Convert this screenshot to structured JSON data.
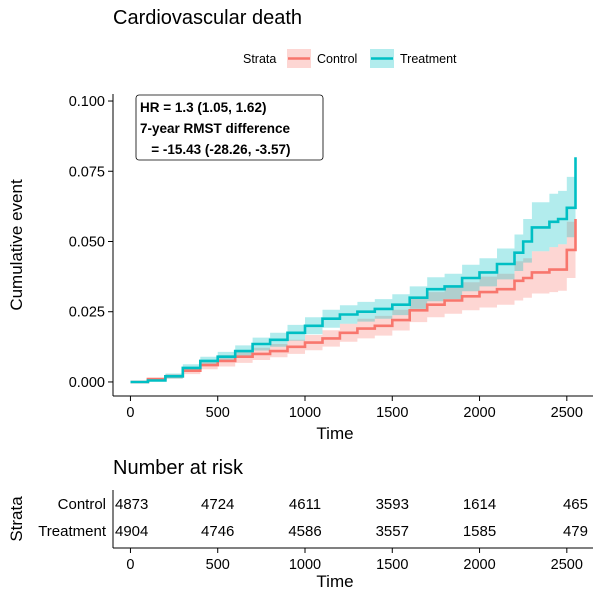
{
  "chart_data": [
    {
      "type": "line",
      "title": "Cardiovascular death",
      "xlabel": "Time",
      "ylabel": "Cumulative event",
      "xlim": [
        -100,
        2650
      ],
      "ylim": [
        -0.005,
        0.1025
      ],
      "xticks": [
        "0",
        "500",
        "1000",
        "1500",
        "2000",
        "2500"
      ],
      "xtick_values": [
        0,
        500,
        1000,
        1500,
        2000,
        2500
      ],
      "yticks": [
        "0.000",
        "0.025",
        "0.050",
        "0.075",
        "0.100"
      ],
      "ytick_values": [
        0,
        0.025,
        0.05,
        0.075,
        0.1
      ],
      "legend": {
        "title": "Strata",
        "position": "top",
        "entries": [
          "Control",
          "Treatment"
        ]
      },
      "annotation": {
        "lines": [
          "HR = 1.3 (1.05, 1.62)",
          "7-year RMST difference",
          "   = -15.43 (-28.26, -3.57)"
        ]
      },
      "series": [
        {
          "name": "Control",
          "color": "#F8766D",
          "x": [
            0,
            100,
            200,
            300,
            400,
            500,
            600,
            700,
            800,
            900,
            1000,
            1100,
            1200,
            1300,
            1400,
            1500,
            1600,
            1700,
            1800,
            1900,
            2000,
            2100,
            2200,
            2250,
            2300,
            2400,
            2450,
            2500,
            2550
          ],
          "y": [
            0,
            0.001,
            0.002,
            0.004,
            0.006,
            0.0075,
            0.009,
            0.01,
            0.011,
            0.0125,
            0.014,
            0.0155,
            0.0175,
            0.019,
            0.02,
            0.022,
            0.0255,
            0.0275,
            0.029,
            0.0305,
            0.032,
            0.033,
            0.036,
            0.037,
            0.039,
            0.04,
            0.04,
            0.047,
            0.058
          ],
          "lower": [
            0,
            0.0005,
            0.0012,
            0.0028,
            0.0045,
            0.0055,
            0.0068,
            0.0078,
            0.0088,
            0.01,
            0.0113,
            0.0126,
            0.0143,
            0.0155,
            0.0165,
            0.0183,
            0.0213,
            0.023,
            0.0243,
            0.0255,
            0.0265,
            0.0275,
            0.029,
            0.03,
            0.0315,
            0.032,
            0.0325,
            0.037,
            0.046
          ],
          "upper": [
            0,
            0.0015,
            0.0028,
            0.0052,
            0.0075,
            0.0095,
            0.0112,
            0.0122,
            0.0135,
            0.015,
            0.0167,
            0.0184,
            0.0207,
            0.0225,
            0.0235,
            0.0257,
            0.0297,
            0.032,
            0.0337,
            0.0355,
            0.0375,
            0.0385,
            0.043,
            0.044,
            0.0465,
            0.048,
            0.049,
            0.057,
            0.07
          ]
        },
        {
          "name": "Treatment",
          "color": "#00BFC4",
          "x": [
            0,
            100,
            200,
            300,
            400,
            500,
            600,
            700,
            800,
            900,
            1000,
            1100,
            1200,
            1300,
            1400,
            1500,
            1600,
            1700,
            1800,
            1900,
            2000,
            2100,
            2200,
            2250,
            2300,
            2400,
            2450,
            2500,
            2550
          ],
          "y": [
            0,
            0.0005,
            0.002,
            0.005,
            0.0075,
            0.009,
            0.011,
            0.0135,
            0.015,
            0.0175,
            0.02,
            0.0225,
            0.024,
            0.025,
            0.026,
            0.0275,
            0.03,
            0.033,
            0.034,
            0.037,
            0.039,
            0.042,
            0.046,
            0.05,
            0.055,
            0.057,
            0.058,
            0.062,
            0.08
          ],
          "lower": [
            0,
            0.0002,
            0.0012,
            0.0038,
            0.006,
            0.0073,
            0.009,
            0.0112,
            0.0125,
            0.0147,
            0.017,
            0.0193,
            0.0207,
            0.0215,
            0.0225,
            0.0238,
            0.026,
            0.0287,
            0.0295,
            0.0323,
            0.034,
            0.0365,
            0.0395,
            0.0425,
            0.0465,
            0.048,
            0.049,
            0.0515,
            0.06
          ],
          "upper": [
            0,
            0.001,
            0.003,
            0.0063,
            0.009,
            0.0107,
            0.013,
            0.0158,
            0.0175,
            0.0203,
            0.023,
            0.0257,
            0.0273,
            0.0285,
            0.0295,
            0.0312,
            0.034,
            0.0373,
            0.0385,
            0.0417,
            0.044,
            0.0475,
            0.0525,
            0.058,
            0.064,
            0.067,
            0.068,
            0.073,
            0.085
          ]
        }
      ]
    },
    {
      "type": "table",
      "title": "Number at risk",
      "xlabel": "Time",
      "ylabel": "Strata",
      "xlim": [
        -100,
        2650
      ],
      "xticks": [
        "0",
        "500",
        "1000",
        "1500",
        "2000",
        "2500"
      ],
      "xtick_values": [
        0,
        500,
        1000,
        1500,
        2000,
        2500
      ],
      "rows": [
        {
          "label": "Control",
          "color": "#F8766D",
          "values": [
            "4873",
            "4724",
            "4611",
            "3593",
            "1614",
            "465"
          ]
        },
        {
          "label": "Treatment",
          "color": "#00BFC4",
          "values": [
            "4904",
            "4746",
            "4586",
            "3557",
            "1585",
            "479"
          ]
        }
      ]
    }
  ]
}
